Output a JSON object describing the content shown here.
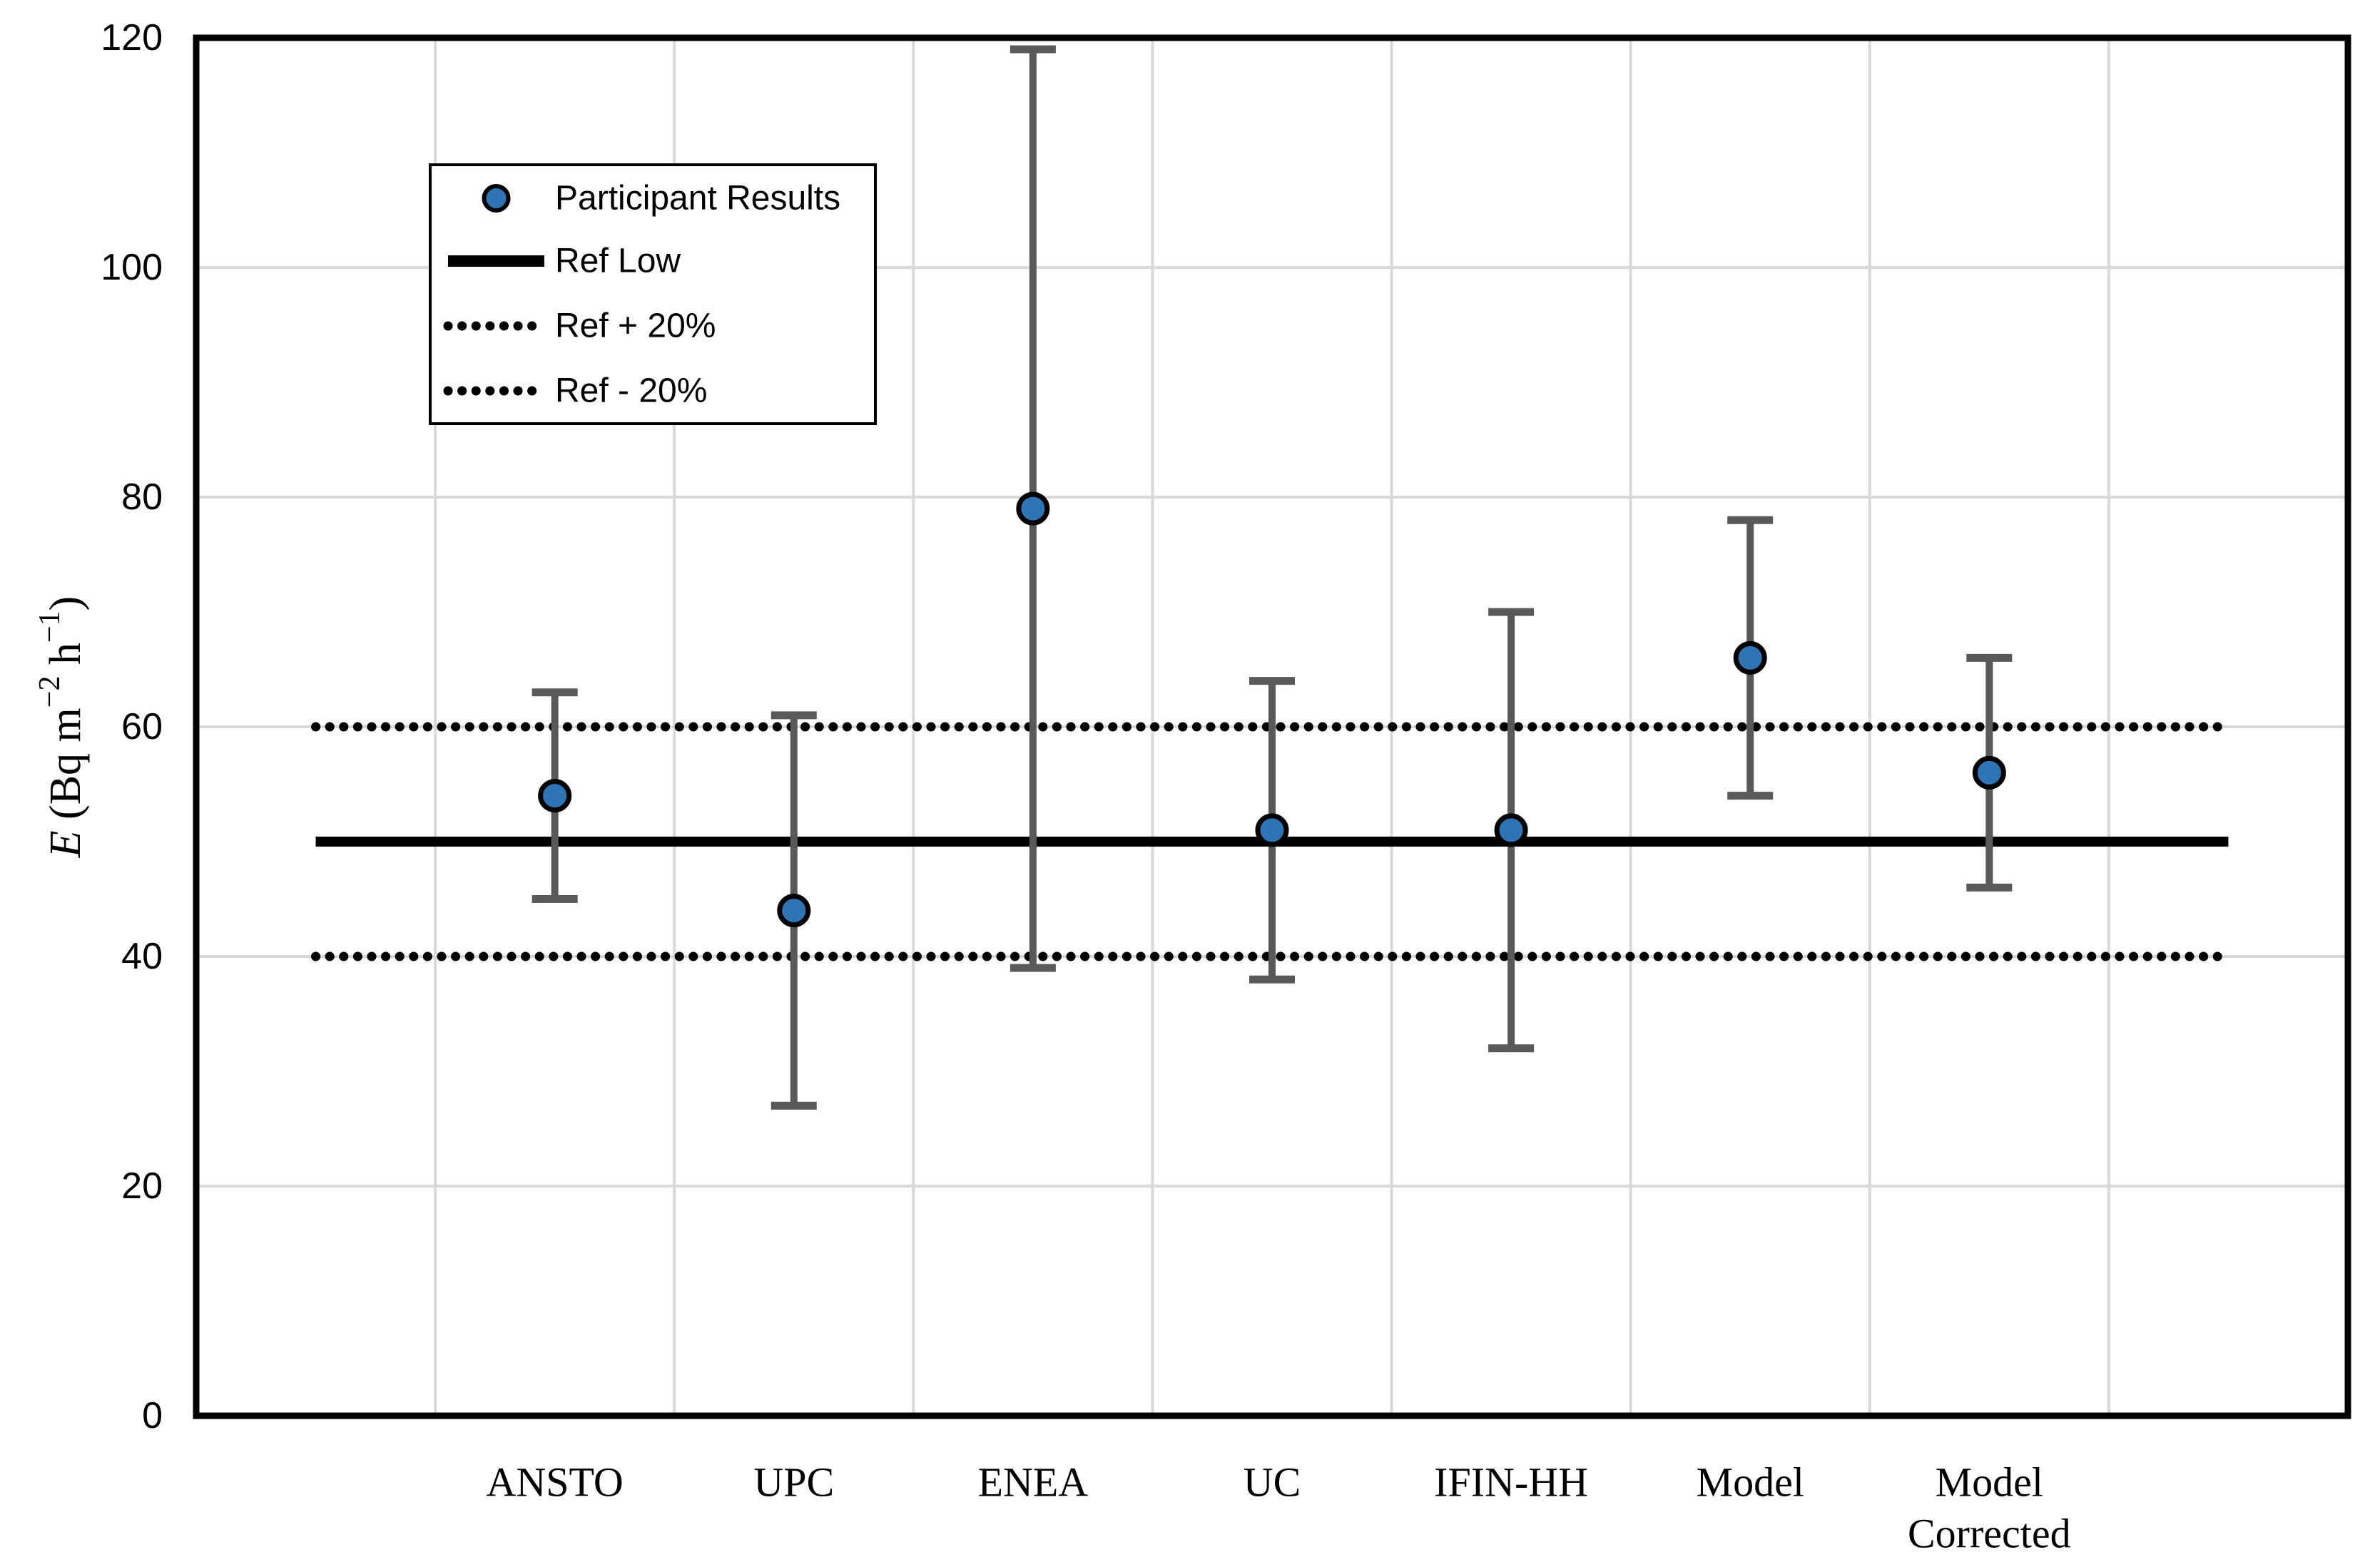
{
  "page": {
    "background": "#ffffff"
  },
  "chart_data": {
    "type": "scatter",
    "title": "",
    "xlabel": "",
    "ylabel_plain": "E (Bq m−2 h−1)",
    "ylabel_runs": [
      {
        "text": "E",
        "italic": true
      },
      {
        "text": " (Bq m"
      },
      {
        "text": "−2",
        "sup": true
      },
      {
        "text": " h"
      },
      {
        "text": "−1",
        "sup": true
      },
      {
        "text": ")"
      }
    ],
    "ylim": [
      0,
      120
    ],
    "ytick_step": 20,
    "yticks": [
      "0",
      "20",
      "40",
      "60",
      "80",
      "100",
      "120"
    ],
    "grid": true,
    "legend_position": "top-left",
    "categories": [
      "ANSTO",
      "UPC",
      "ENEA",
      "UC",
      "IFIN-HH",
      "Model",
      "Model Corrected"
    ],
    "category_label_lines": [
      [
        "ANSTO"
      ],
      [
        "UPC"
      ],
      [
        "ENEA"
      ],
      [
        "UC"
      ],
      [
        "IFIN-HH"
      ],
      [
        "Model"
      ],
      [
        "Model",
        "Corrected"
      ]
    ],
    "series": [
      {
        "name": "Participant Results",
        "kind": "points",
        "values": [
          54,
          44,
          79,
          51,
          51,
          66,
          56
        ],
        "error_plus": [
          9,
          17,
          40,
          13,
          19,
          12,
          10
        ],
        "error_minus": [
          9,
          17,
          40,
          13,
          19,
          12,
          10
        ]
      },
      {
        "name": "Ref Low",
        "kind": "solid-line",
        "value": 50
      },
      {
        "name": "Ref + 20%",
        "kind": "dotted-line",
        "value": 60
      },
      {
        "name": "Ref - 20%",
        "kind": "dotted-line",
        "value": 40
      }
    ],
    "legend_entries": [
      "Participant Results",
      "Ref Low",
      "Ref + 20%",
      "Ref - 20%"
    ],
    "style": {
      "marker_fill": "#2E75B6",
      "marker_stroke": "#000000",
      "error_bar_color": "#595959",
      "grid_color": "#D9D9D9",
      "ref_line_color": "#000000",
      "text_color": "#000000",
      "plot_border_color": "#000000",
      "legend_border_color": "#000000",
      "legend_fill": "#FFFFFF"
    }
  }
}
